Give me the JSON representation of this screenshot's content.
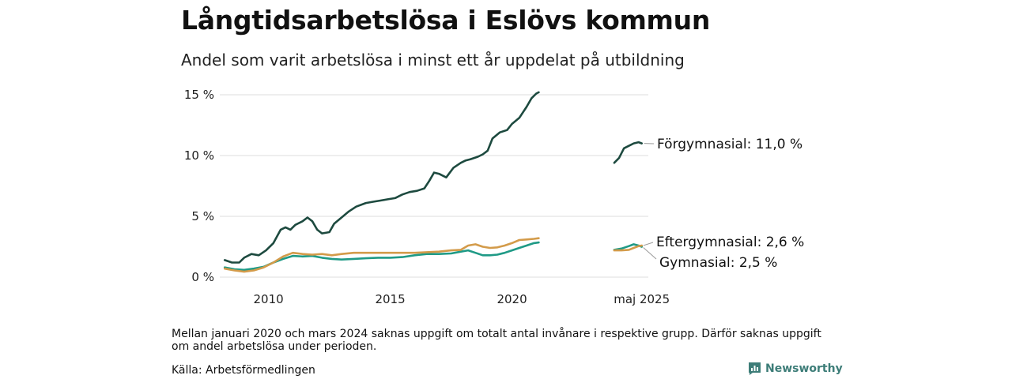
{
  "title": "Långtidsarbetslösa i Eslövs kommun",
  "subtitle": "Andel som varit arbetslösa i minst ett år uppdelat på utbildning",
  "footnote": "Mellan januari 2020 och mars 2024 saknas uppgift om totalt antal invånare i respektive grupp. Därför saknas uppgift om andel arbetslösa under perioden.",
  "source": "Källa: Arbetsförmedlingen",
  "brand": {
    "name": "Newsworthy",
    "icon": "bar-chart-logo-icon",
    "color": "#3d7d78"
  },
  "chart_data": {
    "type": "line",
    "x_ticks": [
      {
        "x": 2010,
        "label": "2010"
      },
      {
        "x": 2015,
        "label": "2015"
      },
      {
        "x": 2020,
        "label": "2020"
      },
      {
        "x": 2025.33,
        "label": "maj 2025"
      }
    ],
    "y_ticks": [
      {
        "y": 0,
        "label": "0 %"
      },
      {
        "y": 5,
        "label": "5 %"
      },
      {
        "y": 10,
        "label": "10 %"
      },
      {
        "y": 15,
        "label": "15 %"
      }
    ],
    "ylim": [
      0,
      15
    ],
    "grid": "horizontal",
    "series": [
      {
        "name": "Förgymnasial",
        "end_label": "Förgymnasial: 11,0 %",
        "color": "#1d4a3f",
        "points": [
          [
            2008.2,
            1.4
          ],
          [
            2008.5,
            1.2
          ],
          [
            2008.8,
            1.2
          ],
          [
            2009.0,
            1.6
          ],
          [
            2009.3,
            1.9
          ],
          [
            2009.6,
            1.8
          ],
          [
            2009.9,
            2.2
          ],
          [
            2010.2,
            2.8
          ],
          [
            2010.5,
            3.9
          ],
          [
            2010.7,
            4.1
          ],
          [
            2010.9,
            3.9
          ],
          [
            2011.1,
            4.3
          ],
          [
            2011.4,
            4.6
          ],
          [
            2011.6,
            4.9
          ],
          [
            2011.8,
            4.6
          ],
          [
            2012.0,
            3.9
          ],
          [
            2012.2,
            3.6
          ],
          [
            2012.5,
            3.7
          ],
          [
            2012.7,
            4.4
          ],
          [
            2013.0,
            4.9
          ],
          [
            2013.3,
            5.4
          ],
          [
            2013.6,
            5.8
          ],
          [
            2014.0,
            6.1
          ],
          [
            2014.3,
            6.2
          ],
          [
            2014.6,
            6.3
          ],
          [
            2014.9,
            6.4
          ],
          [
            2015.2,
            6.5
          ],
          [
            2015.5,
            6.8
          ],
          [
            2015.8,
            7.0
          ],
          [
            2016.1,
            7.1
          ],
          [
            2016.4,
            7.3
          ],
          [
            2016.6,
            7.9
          ],
          [
            2016.8,
            8.6
          ],
          [
            2017.0,
            8.5
          ],
          [
            2017.3,
            8.2
          ],
          [
            2017.6,
            9.0
          ],
          [
            2017.9,
            9.4
          ],
          [
            2018.1,
            9.6
          ],
          [
            2018.3,
            9.7
          ],
          [
            2018.6,
            9.9
          ],
          [
            2018.8,
            10.1
          ],
          [
            2019.0,
            10.4
          ],
          [
            2019.2,
            11.4
          ],
          [
            2019.5,
            11.9
          ],
          [
            2019.8,
            12.1
          ],
          [
            2020.0,
            12.6
          ],
          [
            2020.3,
            13.1
          ],
          [
            2020.6,
            14.0
          ],
          [
            2020.8,
            14.7
          ],
          [
            2021.0,
            15.1
          ],
          [
            2021.1,
            15.2
          ]
        ],
        "points_recent": [
          [
            2024.2,
            9.4
          ],
          [
            2024.4,
            9.8
          ],
          [
            2024.6,
            10.6
          ],
          [
            2024.8,
            10.8
          ],
          [
            2025.0,
            11.0
          ],
          [
            2025.2,
            11.1
          ],
          [
            2025.33,
            11.0
          ]
        ]
      },
      {
        "name": "Eftergymnasial",
        "end_label": "Eftergymnasial:  2,6 %",
        "color": "#d39b4a",
        "points": [
          [
            2008.2,
            0.7
          ],
          [
            2008.6,
            0.55
          ],
          [
            2009.0,
            0.45
          ],
          [
            2009.4,
            0.55
          ],
          [
            2009.8,
            0.8
          ],
          [
            2010.2,
            1.2
          ],
          [
            2010.6,
            1.7
          ],
          [
            2011.0,
            2.0
          ],
          [
            2011.4,
            1.9
          ],
          [
            2011.8,
            1.85
          ],
          [
            2012.2,
            1.9
          ],
          [
            2012.6,
            1.8
          ],
          [
            2013.0,
            1.9
          ],
          [
            2013.5,
            2.0
          ],
          [
            2014.0,
            2.0
          ],
          [
            2014.5,
            2.0
          ],
          [
            2015.0,
            2.0
          ],
          [
            2015.5,
            2.0
          ],
          [
            2016.0,
            2.0
          ],
          [
            2016.5,
            2.05
          ],
          [
            2017.0,
            2.1
          ],
          [
            2017.5,
            2.2
          ],
          [
            2017.9,
            2.25
          ],
          [
            2018.2,
            2.6
          ],
          [
            2018.5,
            2.7
          ],
          [
            2018.8,
            2.5
          ],
          [
            2019.1,
            2.4
          ],
          [
            2019.4,
            2.45
          ],
          [
            2019.7,
            2.6
          ],
          [
            2020.0,
            2.8
          ],
          [
            2020.3,
            3.05
          ],
          [
            2020.6,
            3.1
          ],
          [
            2020.9,
            3.15
          ],
          [
            2021.1,
            3.2
          ]
        ],
        "points_recent": [
          [
            2024.2,
            2.2
          ],
          [
            2024.5,
            2.2
          ],
          [
            2024.8,
            2.25
          ],
          [
            2025.0,
            2.4
          ],
          [
            2025.2,
            2.55
          ],
          [
            2025.33,
            2.6
          ]
        ]
      },
      {
        "name": "Gymnasial",
        "end_label": "Gymnasial:  2,5 %",
        "color": "#1f9a86",
        "points": [
          [
            2008.2,
            0.8
          ],
          [
            2008.6,
            0.65
          ],
          [
            2009.0,
            0.6
          ],
          [
            2009.4,
            0.7
          ],
          [
            2009.8,
            0.85
          ],
          [
            2010.2,
            1.2
          ],
          [
            2010.6,
            1.5
          ],
          [
            2011.0,
            1.75
          ],
          [
            2011.4,
            1.7
          ],
          [
            2011.8,
            1.75
          ],
          [
            2012.2,
            1.6
          ],
          [
            2012.6,
            1.5
          ],
          [
            2013.0,
            1.45
          ],
          [
            2013.5,
            1.5
          ],
          [
            2014.0,
            1.55
          ],
          [
            2014.5,
            1.6
          ],
          [
            2015.0,
            1.6
          ],
          [
            2015.5,
            1.65
          ],
          [
            2016.0,
            1.8
          ],
          [
            2016.5,
            1.9
          ],
          [
            2017.0,
            1.9
          ],
          [
            2017.5,
            1.95
          ],
          [
            2017.9,
            2.1
          ],
          [
            2018.2,
            2.2
          ],
          [
            2018.5,
            2.0
          ],
          [
            2018.8,
            1.8
          ],
          [
            2019.1,
            1.8
          ],
          [
            2019.4,
            1.85
          ],
          [
            2019.7,
            2.0
          ],
          [
            2020.0,
            2.2
          ],
          [
            2020.3,
            2.4
          ],
          [
            2020.6,
            2.6
          ],
          [
            2020.9,
            2.8
          ],
          [
            2021.1,
            2.85
          ]
        ],
        "points_recent": [
          [
            2024.2,
            2.25
          ],
          [
            2024.5,
            2.35
          ],
          [
            2024.8,
            2.55
          ],
          [
            2025.0,
            2.7
          ],
          [
            2025.2,
            2.6
          ],
          [
            2025.33,
            2.5
          ]
        ]
      }
    ]
  }
}
